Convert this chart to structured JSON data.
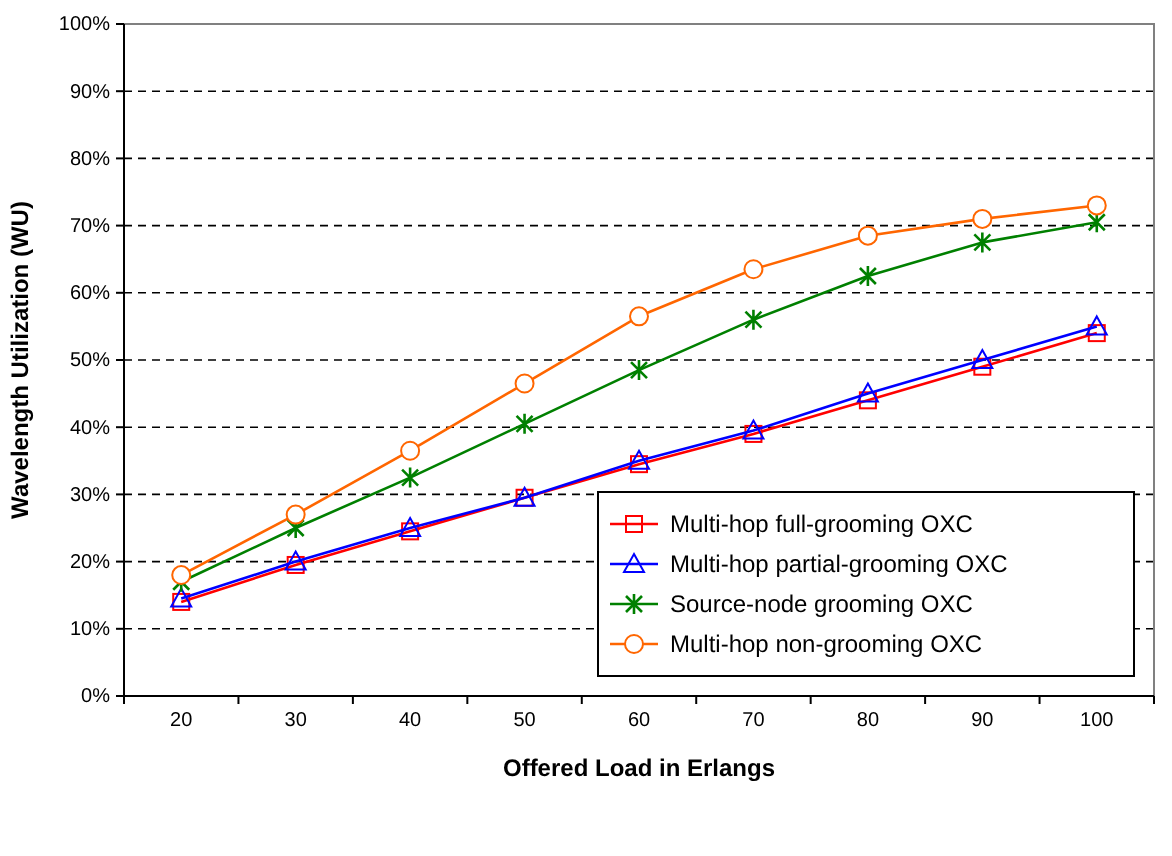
{
  "chart_data": {
    "type": "line",
    "xlabel": "Offered Load in Erlangs",
    "ylabel": "Wavelength Utilization (WU)",
    "categories": [
      "20",
      "30",
      "40",
      "50",
      "60",
      "70",
      "80",
      "90",
      "100"
    ],
    "series": [
      {
        "name": "Multi-hop full-grooming OXC",
        "color": "#ff0000",
        "marker": "square",
        "values": [
          14,
          19.5,
          24.5,
          29.5,
          34.5,
          39,
          44,
          49,
          54
        ]
      },
      {
        "name": "Multi-hop partial-grooming OXC",
        "color": "#0000ff",
        "marker": "triangle",
        "values": [
          14.5,
          20,
          25,
          29.5,
          35,
          39.5,
          45,
          50,
          55
        ]
      },
      {
        "name": "Source-node grooming OXC",
        "color": "#008000",
        "marker": "cross",
        "values": [
          17,
          25,
          32.5,
          40.5,
          48.5,
          56,
          62.5,
          67.5,
          70.5
        ]
      },
      {
        "name": "Multi-hop non-grooming OXC",
        "color": "#ff6600",
        "marker": "circle",
        "values": [
          18,
          27,
          36.5,
          46.5,
          56.5,
          63.5,
          68.5,
          71,
          73
        ]
      }
    ],
    "ylim": [
      0,
      100
    ],
    "yticks": [
      {
        "value": 0,
        "label": "0%"
      },
      {
        "value": 10,
        "label": "10%"
      },
      {
        "value": 20,
        "label": "20%"
      },
      {
        "value": 30,
        "label": "30%"
      },
      {
        "value": 40,
        "label": "40%"
      },
      {
        "value": 50,
        "label": "50%"
      },
      {
        "value": 60,
        "label": "60%"
      },
      {
        "value": 70,
        "label": "70%"
      },
      {
        "value": 80,
        "label": "80%"
      },
      {
        "value": 90,
        "label": "90%"
      },
      {
        "value": 100,
        "label": "100%"
      }
    ],
    "grid": "y",
    "legend": "bottom right",
    "line_style": "solid"
  }
}
